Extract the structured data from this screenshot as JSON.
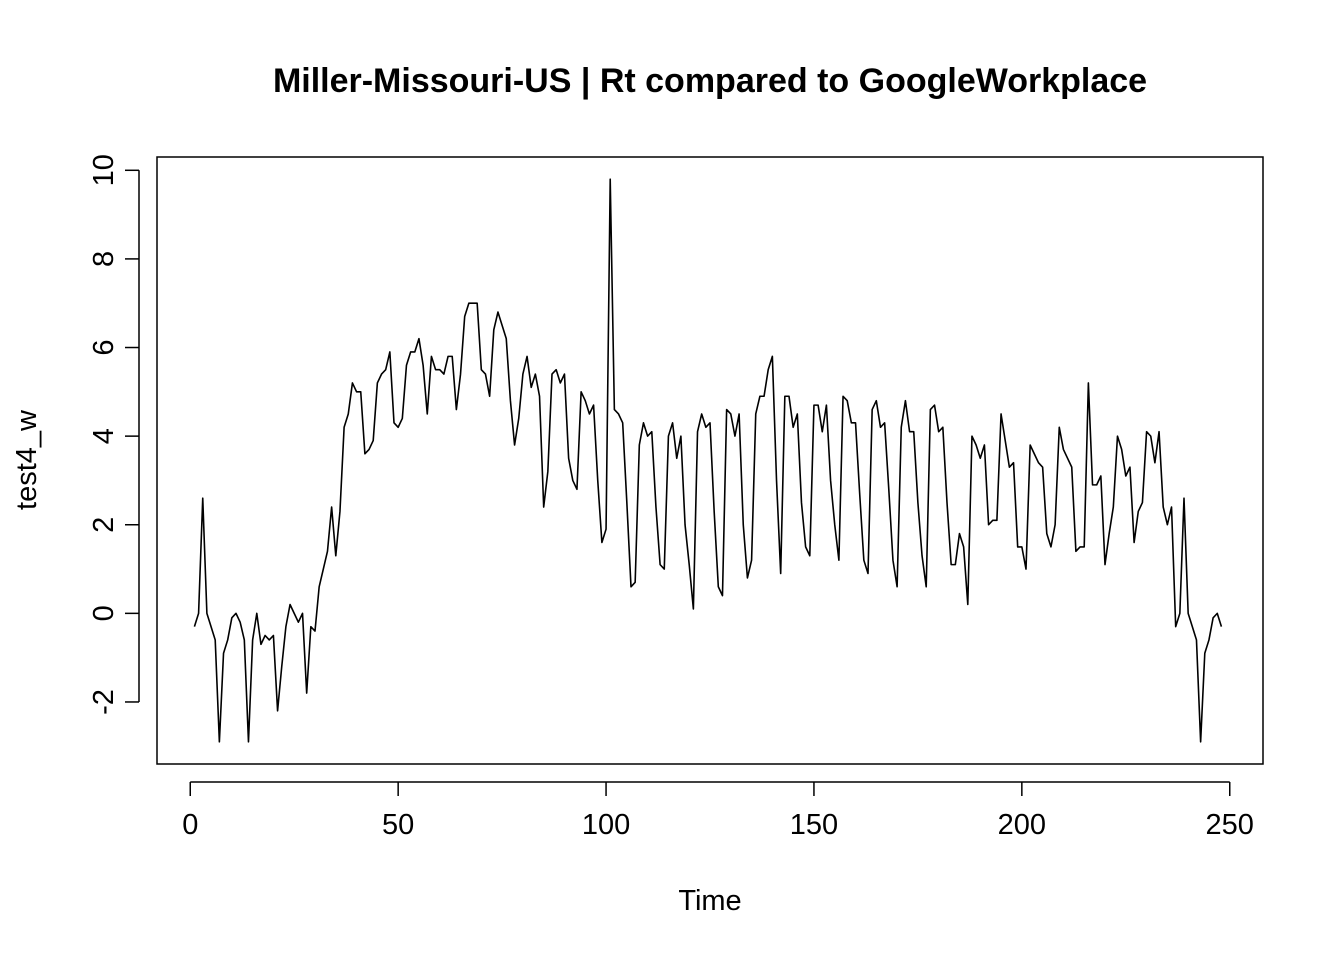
{
  "chart_data": {
    "type": "line",
    "title": "Miller-Missouri-US | Rt compared to GoogleWorkplace",
    "xlabel": "Time",
    "ylabel": "test4_w",
    "xlim": [
      -8,
      258
    ],
    "ylim": [
      -3.4,
      10.3
    ],
    "x_ticks": [
      0,
      50,
      100,
      150,
      200,
      250
    ],
    "y_ticks": [
      -2,
      0,
      2,
      4,
      6,
      8,
      10
    ],
    "grid": false,
    "legend": "none",
    "line_color": "#000000",
    "series": [
      {
        "x": [
          1,
          2,
          3,
          4,
          5,
          6,
          7,
          8,
          9,
          10,
          11,
          12,
          13,
          14,
          15,
          16,
          17,
          18,
          19,
          20,
          21,
          22,
          23,
          24,
          25,
          26,
          27,
          28,
          29,
          30,
          31,
          32,
          33,
          34,
          35,
          36,
          37,
          38,
          39,
          40,
          41,
          42,
          43,
          44,
          45,
          46,
          47,
          48,
          49,
          50,
          51,
          52,
          53,
          54,
          55,
          56,
          57,
          58,
          59,
          60,
          61,
          62,
          63,
          64,
          65,
          66,
          67,
          68,
          69,
          70,
          71,
          72,
          73,
          74,
          75,
          76,
          77,
          78,
          79,
          80,
          81,
          82,
          83,
          84,
          85,
          86,
          87,
          88,
          89,
          90,
          91,
          92,
          93,
          94,
          95,
          96,
          97,
          98,
          99,
          100,
          101,
          102,
          103,
          104,
          105,
          106,
          107,
          108,
          109,
          110,
          111,
          112,
          113,
          114,
          115,
          116,
          117,
          118,
          119,
          120,
          121,
          122,
          123,
          124,
          125,
          126,
          127,
          128,
          129,
          130,
          131,
          132,
          133,
          134,
          135,
          136,
          137,
          138,
          139,
          140,
          141,
          142,
          143,
          144,
          145,
          146,
          147,
          148,
          149,
          150,
          151,
          152,
          153,
          154,
          155,
          156,
          157,
          158,
          159,
          160,
          161,
          162,
          163,
          164,
          165,
          166,
          167,
          168,
          169,
          170,
          171,
          172,
          173,
          174,
          175,
          176,
          177,
          178,
          179,
          180,
          181,
          182,
          183,
          184,
          185,
          186,
          187,
          188,
          189,
          190,
          191,
          192,
          193,
          194,
          195,
          196,
          197,
          198,
          199,
          200,
          201,
          202,
          203,
          204,
          205,
          206,
          207,
          208,
          209,
          210,
          211,
          212,
          213,
          214,
          215,
          216,
          217,
          218,
          219,
          220,
          221,
          222,
          223,
          224,
          225,
          226,
          227,
          228,
          229,
          230,
          231,
          232,
          233,
          234,
          235,
          236,
          237,
          238,
          239,
          240,
          241,
          242,
          243,
          244,
          245,
          246,
          247,
          248
        ],
        "values": [
          -0.3,
          0.0,
          2.6,
          0.0,
          -0.3,
          -0.6,
          -2.9,
          -0.9,
          -0.6,
          -0.1,
          0.0,
          -0.2,
          -0.6,
          -2.9,
          -0.6,
          0.0,
          -0.7,
          -0.5,
          -0.6,
          -0.5,
          -2.2,
          -1.2,
          -0.3,
          0.2,
          0.0,
          -0.2,
          0.0,
          -1.8,
          -0.3,
          -0.4,
          0.6,
          1.0,
          1.4,
          2.4,
          1.3,
          2.3,
          4.2,
          4.5,
          5.2,
          5.0,
          5.0,
          3.6,
          3.7,
          3.9,
          5.2,
          5.4,
          5.5,
          5.9,
          4.3,
          4.2,
          4.4,
          5.6,
          5.9,
          5.9,
          6.2,
          5.6,
          4.5,
          5.8,
          5.5,
          5.5,
          5.4,
          5.8,
          5.8,
          4.6,
          5.4,
          6.7,
          7.0,
          7.0,
          7.0,
          5.5,
          5.4,
          4.9,
          6.4,
          6.8,
          6.5,
          6.2,
          4.8,
          3.8,
          4.4,
          5.4,
          5.8,
          5.1,
          5.4,
          4.9,
          2.4,
          3.2,
          5.4,
          5.5,
          5.2,
          5.4,
          3.5,
          3.0,
          2.8,
          5.0,
          4.8,
          4.5,
          4.7,
          3.0,
          1.6,
          1.9,
          9.8,
          4.6,
          4.5,
          4.3,
          2.5,
          0.6,
          0.7,
          3.8,
          4.3,
          4.0,
          4.1,
          2.4,
          1.1,
          1.0,
          4.0,
          4.3,
          3.5,
          4.0,
          2.0,
          1.1,
          0.1,
          4.1,
          4.5,
          4.2,
          4.3,
          2.3,
          0.6,
          0.4,
          4.6,
          4.5,
          4.0,
          4.5,
          2.0,
          0.8,
          1.2,
          4.5,
          4.9,
          4.9,
          5.5,
          5.8,
          3.0,
          0.9,
          4.9,
          4.9,
          4.2,
          4.5,
          2.5,
          1.5,
          1.3,
          4.7,
          4.7,
          4.1,
          4.7,
          3.0,
          2.0,
          1.2,
          4.9,
          4.8,
          4.3,
          4.3,
          2.7,
          1.2,
          0.9,
          4.6,
          4.8,
          4.2,
          4.3,
          2.8,
          1.2,
          0.6,
          4.2,
          4.8,
          4.1,
          4.1,
          2.5,
          1.3,
          0.6,
          4.6,
          4.7,
          4.1,
          4.2,
          2.5,
          1.1,
          1.1,
          1.8,
          1.5,
          0.2,
          4.0,
          3.8,
          3.5,
          3.8,
          2.0,
          2.1,
          2.1,
          4.5,
          3.9,
          3.3,
          3.4,
          1.5,
          1.5,
          1.0,
          3.8,
          3.6,
          3.4,
          3.3,
          1.8,
          1.5,
          2.0,
          4.2,
          3.7,
          3.5,
          3.3,
          1.4,
          1.5,
          1.5,
          5.2,
          2.9,
          2.9,
          3.1,
          1.1,
          1.8,
          2.4,
          4.0,
          3.7,
          3.1,
          3.3,
          1.6,
          2.3,
          2.5,
          4.1,
          4.0,
          3.4,
          4.1,
          2.4,
          2.0,
          2.4,
          -0.3,
          0.0,
          2.6,
          0.0,
          -0.3,
          -0.6,
          -2.9,
          -0.9,
          -0.6,
          -0.1,
          0.0,
          -0.3
        ]
      }
    ]
  }
}
